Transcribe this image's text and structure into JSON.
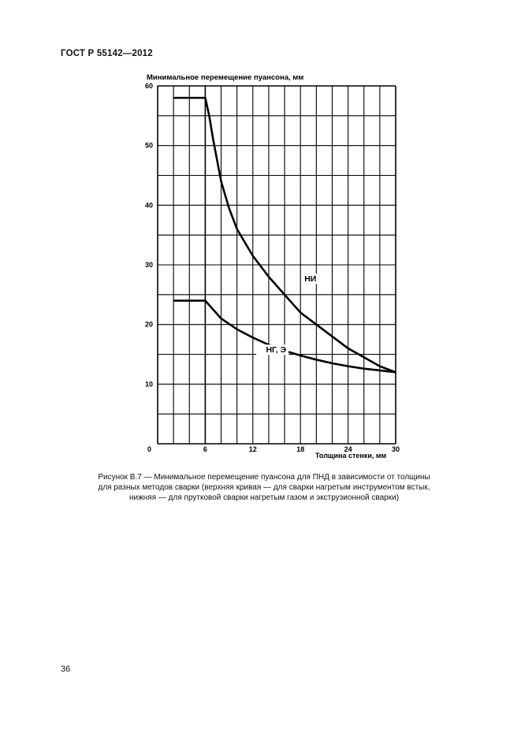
{
  "document": {
    "header": "ГОСТ Р 55142—2012",
    "caption_lines": [
      "Рисунок В.7 — Минимальное перемещение пуансона для ПНД в зависимости от толщины",
      "для разных методов сварки (верхняя кривая — для сварки нагретым инструментом встык,",
      "нижняя — для прутковой сварки нагретым газом и экструзионной сварки)"
    ],
    "page_number": "36"
  },
  "chart_data": {
    "type": "line",
    "ylabel": "Минимальное перемещение пуансона, мм",
    "xlabel": "Толщина стенки, мм",
    "xlim": [
      0,
      30
    ],
    "ylim": [
      0,
      60
    ],
    "x_ticks": [
      "0",
      "6",
      "12",
      "18",
      "24",
      "30"
    ],
    "y_ticks": [
      "10",
      "20",
      "30",
      "40",
      "50",
      "60"
    ],
    "grid": true,
    "series": [
      {
        "name": "НИ",
        "x": [
          2,
          6,
          6.5,
          7,
          8,
          9,
          10,
          12,
          14,
          16,
          18,
          20,
          22,
          24,
          26,
          28,
          30
        ],
        "y": [
          58,
          58,
          55,
          51,
          44,
          39.5,
          36,
          31.5,
          28,
          25,
          22,
          20,
          18,
          16,
          14.5,
          13,
          12
        ]
      },
      {
        "name": "НГ, Э",
        "x": [
          2,
          6,
          7,
          8,
          10,
          12,
          14,
          16,
          18,
          20,
          22,
          24,
          26,
          28,
          30
        ],
        "y": [
          24,
          24,
          22.5,
          21,
          19.2,
          17.8,
          16.6,
          15.6,
          14.8,
          14.1,
          13.5,
          13.0,
          12.6,
          12.3,
          12
        ]
      }
    ]
  }
}
